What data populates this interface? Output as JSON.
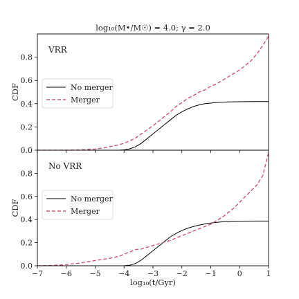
{
  "figure": {
    "title": "log₁₀(M•/M☉) = 4.0; γ = 2.0",
    "xlabel": "log₁₀(t/Gyr)"
  },
  "chart_data": [
    {
      "type": "line",
      "panel_label": "VRR",
      "ylabel": "CDF",
      "xlim": [
        -7,
        1
      ],
      "ylim": [
        0,
        1
      ],
      "xticks": [
        "−7",
        "−6",
        "−5",
        "−4",
        "−3",
        "−2",
        "−1",
        "0",
        "1"
      ],
      "yticks": [
        "0.0",
        "0.2",
        "0.4",
        "0.6",
        "0.8"
      ],
      "legend": "center-left",
      "series": [
        {
          "name": "No merger",
          "color": "#000000",
          "style": "solid",
          "x": [
            -7,
            -4.2,
            -4.0,
            -3.8,
            -3.6,
            -3.4,
            -3.2,
            -3.0,
            -2.8,
            -2.6,
            -2.4,
            -2.2,
            -2.0,
            -1.8,
            -1.6,
            -1.4,
            -1.2,
            -1.0,
            -0.8,
            -0.6,
            -0.4,
            -0.2,
            0.0,
            0.5,
            1.0
          ],
          "y": [
            0.0,
            0.0,
            0.003,
            0.012,
            0.03,
            0.06,
            0.1,
            0.14,
            0.18,
            0.22,
            0.26,
            0.3,
            0.33,
            0.355,
            0.375,
            0.39,
            0.4,
            0.405,
            0.41,
            0.413,
            0.415,
            0.416,
            0.417,
            0.418,
            0.418
          ]
        },
        {
          "name": "Merger",
          "color": "#c9566f",
          "style": "dashed",
          "x": [
            -7,
            -6.0,
            -5.5,
            -5.0,
            -4.7,
            -4.4,
            -4.2,
            -4.0,
            -3.8,
            -3.6,
            -3.4,
            -3.2,
            -3.0,
            -2.8,
            -2.6,
            -2.4,
            -2.2,
            -2.0,
            -1.8,
            -1.6,
            -1.4,
            -1.2,
            -1.0,
            -0.8,
            -0.6,
            -0.4,
            -0.2,
            0.0,
            0.2,
            0.4,
            0.6,
            0.8,
            1.0
          ],
          "y": [
            0.0,
            0.0,
            0.003,
            0.01,
            0.02,
            0.035,
            0.045,
            0.06,
            0.08,
            0.105,
            0.14,
            0.175,
            0.21,
            0.25,
            0.29,
            0.33,
            0.375,
            0.41,
            0.445,
            0.47,
            0.5,
            0.52,
            0.55,
            0.57,
            0.6,
            0.63,
            0.66,
            0.69,
            0.73,
            0.77,
            0.83,
            0.9,
            0.98
          ]
        }
      ]
    },
    {
      "type": "line",
      "panel_label": "No VRR",
      "ylabel": "CDF",
      "xlim": [
        -7,
        1
      ],
      "ylim": [
        0,
        1
      ],
      "xticks": [
        "−7",
        "−6",
        "−5",
        "−4",
        "−3",
        "−2",
        "−1",
        "0",
        "1"
      ],
      "yticks": [
        "0.0",
        "0.2",
        "0.4",
        "0.6",
        "0.8"
      ],
      "legend": "center-left",
      "series": [
        {
          "name": "No merger",
          "color": "#000000",
          "style": "solid",
          "x": [
            -7,
            -4.0,
            -3.8,
            -3.6,
            -3.4,
            -3.2,
            -3.0,
            -2.8,
            -2.6,
            -2.4,
            -2.2,
            -2.0,
            -1.8,
            -1.6,
            -1.4,
            -1.2,
            -1.0,
            -0.8,
            -0.6,
            -0.4,
            -0.2,
            0.0,
            0.5,
            1.0
          ],
          "y": [
            0.0,
            0.0,
            0.005,
            0.02,
            0.05,
            0.09,
            0.13,
            0.17,
            0.21,
            0.25,
            0.28,
            0.305,
            0.325,
            0.34,
            0.352,
            0.362,
            0.37,
            0.376,
            0.38,
            0.383,
            0.385,
            0.386,
            0.387,
            0.387
          ]
        },
        {
          "name": "Merger",
          "color": "#c9566f",
          "style": "dashed",
          "x": [
            -7,
            -6.5,
            -6.0,
            -5.5,
            -5.0,
            -4.5,
            -4.2,
            -4.0,
            -3.8,
            -3.6,
            -3.4,
            -3.2,
            -3.0,
            -2.8,
            -2.6,
            -2.4,
            -2.2,
            -2.0,
            -1.8,
            -1.6,
            -1.4,
            -1.2,
            -1.0,
            -0.8,
            -0.6,
            -0.4,
            -0.2,
            0.0,
            0.2,
            0.4,
            0.6,
            0.8,
            0.9,
            1.0
          ],
          "y": [
            0.0,
            0.003,
            0.01,
            0.025,
            0.045,
            0.065,
            0.08,
            0.1,
            0.12,
            0.14,
            0.145,
            0.16,
            0.175,
            0.19,
            0.205,
            0.22,
            0.24,
            0.26,
            0.28,
            0.3,
            0.32,
            0.34,
            0.36,
            0.39,
            0.42,
            0.46,
            0.5,
            0.55,
            0.6,
            0.65,
            0.7,
            0.78,
            0.88,
            0.98
          ]
        }
      ]
    }
  ]
}
